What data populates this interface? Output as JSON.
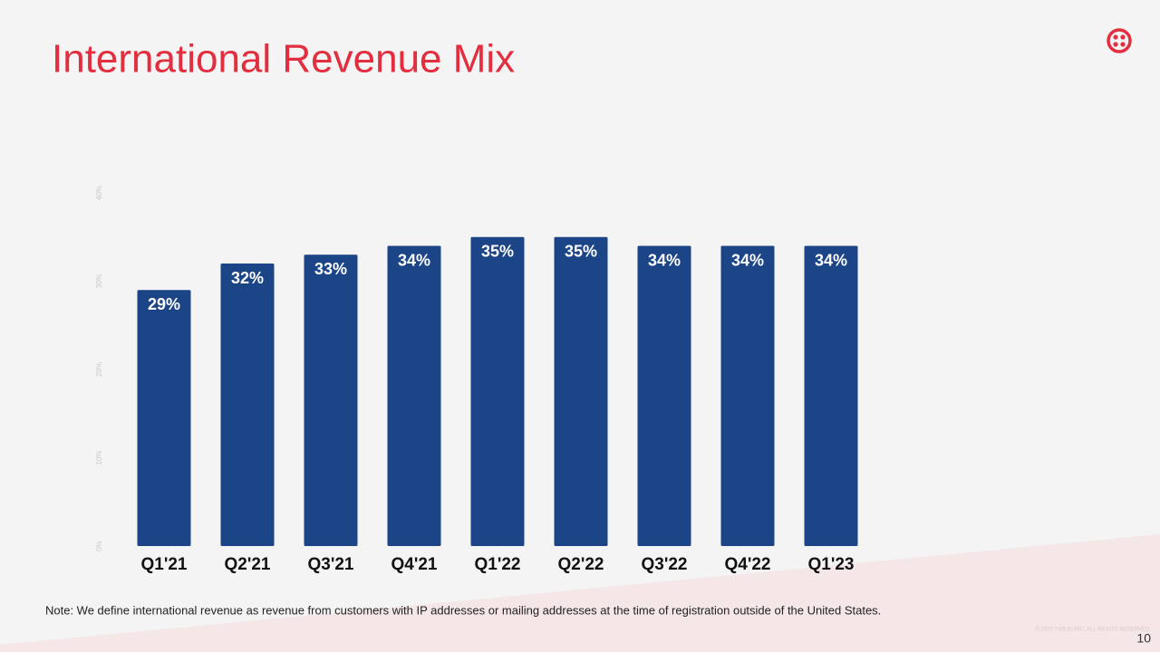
{
  "chart_data": {
    "type": "bar",
    "title": "International Revenue Mix",
    "categories": [
      "Q1'21",
      "Q2'21",
      "Q3'21",
      "Q4'21",
      "Q1'22",
      "Q2'22",
      "Q3'22",
      "Q4'22",
      "Q1'23"
    ],
    "values": [
      29,
      32,
      33,
      34,
      35,
      35,
      34,
      34,
      34
    ],
    "value_labels": [
      "29%",
      "32%",
      "33%",
      "34%",
      "35%",
      "35%",
      "34%",
      "34%",
      "34%"
    ],
    "color": "#1c4587",
    "ylim": [
      0,
      40
    ],
    "yticks": [
      {
        "value": 0,
        "label": "0%"
      },
      {
        "value": 10,
        "label": "10%"
      },
      {
        "value": 20,
        "label": "20%"
      },
      {
        "value": 30,
        "label": "30%"
      },
      {
        "value": 40,
        "label": "40%"
      }
    ],
    "grid": false
  },
  "footer": {
    "note": "Note: We define international revenue as revenue from customers with IP addresses or mailing addresses at the time of registration outside of the United States.",
    "copyright": "© 2023 TWILIO INC. ALL RIGHTS RESERVED.",
    "page_number": "10"
  }
}
